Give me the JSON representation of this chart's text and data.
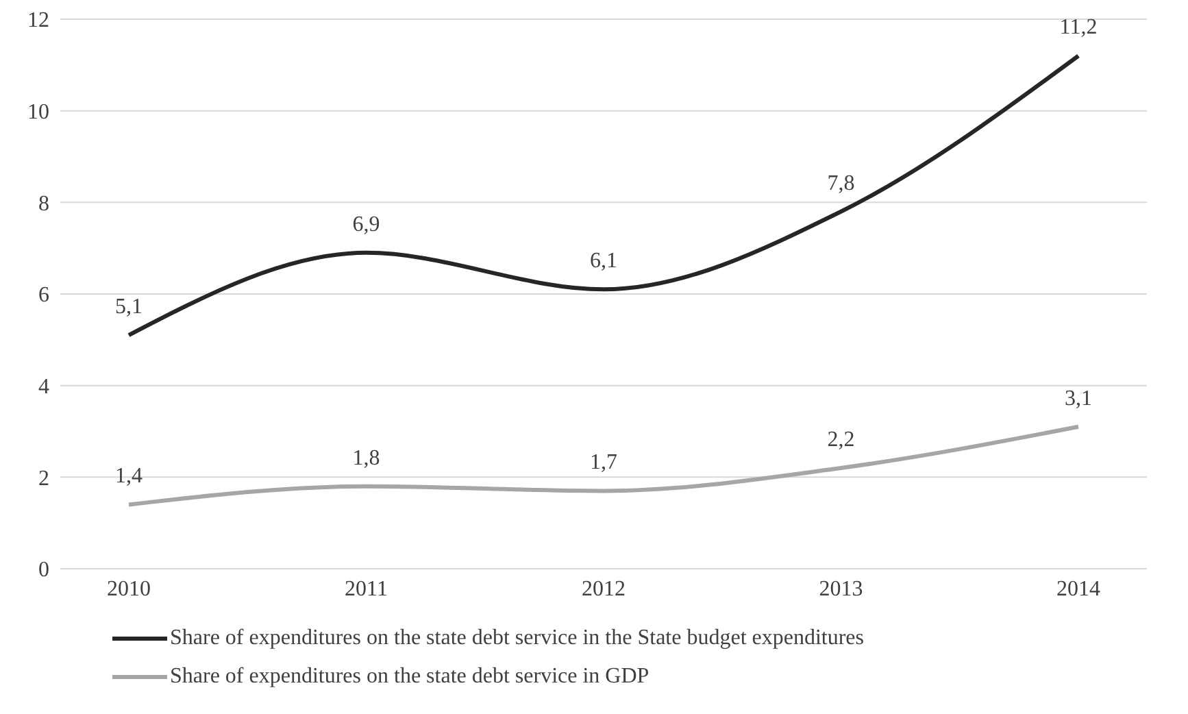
{
  "chart_data": {
    "type": "line",
    "categories": [
      "2010",
      "2011",
      "2012",
      "2013",
      "2014"
    ],
    "series": [
      {
        "name": "Share of expenditures on the state debt service in the State budget expenditures",
        "color": "#262626",
        "values": [
          5.1,
          6.9,
          6.1,
          7.8,
          11.2
        ],
        "value_labels": [
          "5,1",
          "6,9",
          "6,1",
          "7,8",
          "11,2"
        ]
      },
      {
        "name": "Share of expenditures on the state debt service in GDP",
        "color": "#a6a6a6",
        "values": [
          1.4,
          1.8,
          1.7,
          2.2,
          3.1
        ],
        "value_labels": [
          "1,4",
          "1,8",
          "1,7",
          "2,2",
          "3,1"
        ]
      }
    ],
    "ylim": [
      0,
      12
    ],
    "yticks": [
      0,
      2,
      4,
      6,
      8,
      10,
      12
    ],
    "grid": "y",
    "legend": "bottom",
    "marker": "none",
    "line_style": "solid"
  }
}
